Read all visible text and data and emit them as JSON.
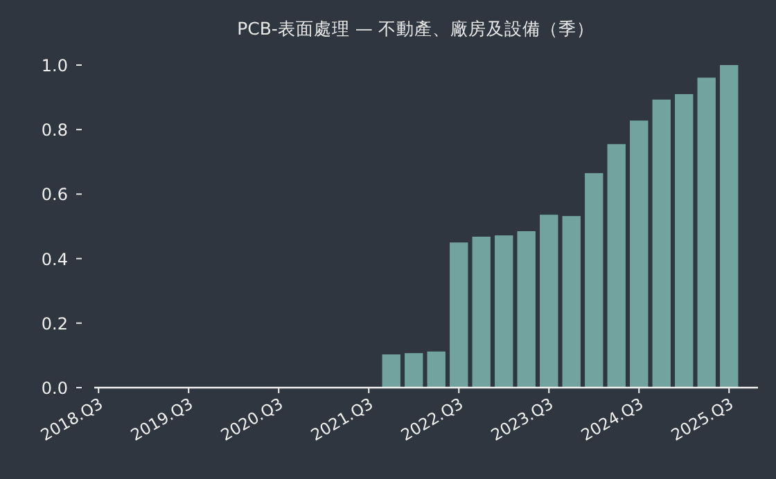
{
  "chart_data": {
    "type": "bar",
    "title": "PCB-表面處理 — 不動產、廠房及設備（季）",
    "categories": [
      "2018.Q3",
      null,
      null,
      null,
      "2019.Q3",
      null,
      null,
      null,
      "2020.Q3",
      null,
      null,
      null,
      "2021.Q3",
      null,
      null,
      null,
      "2022.Q3",
      null,
      null,
      null,
      "2023.Q3",
      null,
      null,
      null,
      "2024.Q3",
      null,
      null,
      null,
      "2025.Q3"
    ],
    "values": [
      null,
      null,
      null,
      null,
      null,
      null,
      null,
      null,
      null,
      null,
      null,
      null,
      null,
      0.103,
      0.107,
      0.112,
      0.45,
      0.468,
      0.472,
      0.485,
      0.536,
      0.532,
      0.665,
      0.755,
      0.828,
      0.893,
      0.91,
      0.961,
      1.0
    ],
    "color": "#72a39e",
    "ylim": [
      0,
      1
    ],
    "yticks": [
      {
        "value": 0,
        "label": "0.0"
      },
      {
        "value": 0.2,
        "label": "0.2"
      },
      {
        "value": 0.4,
        "label": "0.4"
      },
      {
        "value": 0.6,
        "label": "0.6"
      },
      {
        "value": 0.8,
        "label": "0.8"
      },
      {
        "value": 1,
        "label": "1.0"
      }
    ],
    "grid": false
  }
}
